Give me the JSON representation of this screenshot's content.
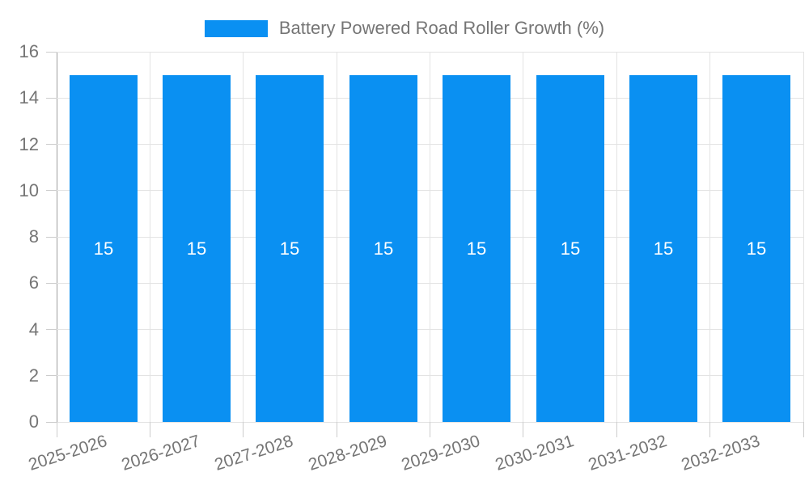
{
  "chart_data": {
    "type": "bar",
    "title": "",
    "legend_label": "Battery Powered Road Roller Growth (%)",
    "legend_position": "top",
    "categories": [
      "2025-2026",
      "2026-2027",
      "2027-2028",
      "2028-2029",
      "2029-2030",
      "2030-2031",
      "2031-2032",
      "2032-2033"
    ],
    "values": [
      15,
      15,
      15,
      15,
      15,
      15,
      15,
      15
    ],
    "bar_value_labels": [
      "15",
      "15",
      "15",
      "15",
      "15",
      "15",
      "15",
      "15"
    ],
    "xlabel": "",
    "ylabel": "",
    "ylim": [
      0,
      16
    ],
    "yticks": [
      0,
      2,
      4,
      6,
      8,
      10,
      12,
      14,
      16
    ],
    "grid": "on",
    "colors": {
      "bar": "#0A90F2",
      "bar_value_text": "#ffffff",
      "grid": "#e3e3e3",
      "axis_line": "#9e9e9e",
      "tick": "#cccccc",
      "label_text": "#757575",
      "background": "#ffffff"
    }
  }
}
